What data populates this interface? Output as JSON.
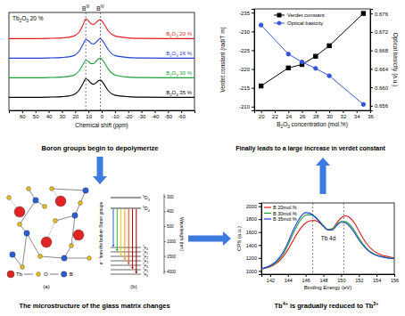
{
  "chart_data": [
    {
      "type": "line",
      "title": "Tb2O3 20 %",
      "xlabel": "Chemical shift (ppm)",
      "x": [
        70,
        50,
        40,
        30,
        25,
        20,
        17,
        14,
        12,
        10,
        8,
        6,
        4,
        2,
        1,
        0,
        -2,
        -5,
        -10,
        -20,
        -30,
        -50,
        -70
      ],
      "series": [
        {
          "name": "B2O3 20 %",
          "color": "#e41a1c",
          "values": [
            3.3,
            3.3,
            3.31,
            3.33,
            3.36,
            3.45,
            3.6,
            3.95,
            4.2,
            4.12,
            3.98,
            3.95,
            4.05,
            4.15,
            4.17,
            4.12,
            3.95,
            3.65,
            3.42,
            3.33,
            3.31,
            3.3,
            3.3
          ]
        },
        {
          "name": "B2O3 26 %",
          "color": "#1f3fd6",
          "values": [
            2.4,
            2.4,
            2.41,
            2.43,
            2.46,
            2.55,
            2.72,
            3.05,
            3.25,
            3.2,
            3.08,
            3.05,
            3.15,
            3.27,
            3.3,
            3.25,
            3.08,
            2.78,
            2.52,
            2.43,
            2.41,
            2.4,
            2.4
          ]
        },
        {
          "name": "B2O3 30 %",
          "color": "#1a9e3a",
          "values": [
            1.5,
            1.5,
            1.51,
            1.53,
            1.56,
            1.65,
            1.82,
            2.12,
            2.3,
            2.25,
            2.15,
            2.15,
            2.28,
            2.38,
            2.4,
            2.36,
            2.2,
            1.9,
            1.63,
            1.53,
            1.51,
            1.5,
            1.5
          ]
        },
        {
          "name": "B2O3 35 %",
          "color": "#000000",
          "values": [
            0.6,
            0.6,
            0.61,
            0.63,
            0.66,
            0.76,
            0.93,
            1.25,
            1.45,
            1.38,
            1.25,
            1.2,
            1.28,
            1.38,
            1.4,
            1.35,
            1.18,
            0.9,
            0.7,
            0.63,
            0.61,
            0.6,
            0.6
          ]
        }
      ],
      "xlim": [
        70,
        -70
      ],
      "xticks": [
        60,
        50,
        40,
        30,
        20,
        10,
        0,
        -10,
        -20,
        -30,
        -40,
        -50,
        -60
      ],
      "ylim": [
        0,
        4.5
      ],
      "tick_labels": "x",
      "vlines": [
        {
          "value": 12,
          "label": "BIII"
        },
        {
          "value": 1,
          "label": "BIV"
        }
      ]
    },
    {
      "type": "line",
      "xlabel": "B2O3 concentration (mol.%)",
      "ylabel": "Verdet constant (rad/T m)",
      "y2label": "Optical basicity (a.u.)",
      "x": [
        20,
        24,
        26,
        28,
        30,
        35
      ],
      "series": [
        {
          "name": "Verdet constant",
          "color": "#000000",
          "marker": "square",
          "values": [
            -215.5,
            -220.3,
            -221.2,
            -223.4,
            -226.2,
            -234.8
          ]
        },
        {
          "name": "Optical basicity",
          "color": "#3355dd",
          "marker": "circle",
          "axis": "y2",
          "values": [
            0.6735,
            0.6672,
            0.6655,
            0.6641,
            0.6625,
            0.6563
          ]
        }
      ],
      "xlim": [
        19,
        36
      ],
      "xticks": [
        20,
        22,
        24,
        26,
        28,
        30,
        32,
        34,
        36
      ],
      "ylim": [
        -209,
        -236
      ],
      "yticks": [
        -210,
        -215,
        -220,
        -225,
        -230,
        -235
      ],
      "y2lim": [
        0.655,
        0.677
      ],
      "y2ticks": [
        0.656,
        {
          "value": 0.66,
          "label": "0.660"
        },
        0.664,
        0.668,
        0.672,
        0.676
      ],
      "legend": "top"
    },
    {
      "type": "line",
      "annotation": "Tb 4d",
      "xlabel": "Binding Energy (eV)",
      "ylabel": "CPS (a.u.)",
      "x": [
        141,
        141.5,
        142,
        142.5,
        143,
        143.5,
        144,
        144.5,
        145,
        145.5,
        146,
        146.5,
        147,
        147.5,
        148,
        148.5,
        149,
        149.5,
        150,
        150.5,
        151,
        151.5,
        152,
        152.5,
        153,
        153.5,
        154,
        154.5,
        155,
        155.5,
        156
      ],
      "series": [
        {
          "name": "B 20mol.%",
          "color": "#e41a1c",
          "values": [
            1030,
            1045,
            1065,
            1100,
            1150,
            1230,
            1330,
            1450,
            1570,
            1670,
            1740,
            1775,
            1780,
            1750,
            1690,
            1640,
            1650,
            1740,
            1820,
            1850,
            1820,
            1740,
            1620,
            1500,
            1400,
            1330,
            1280,
            1250,
            1230,
            1215,
            1200
          ]
        },
        {
          "name": "B 30mol.%",
          "color": "#1a9e3a",
          "values": [
            1030,
            1050,
            1075,
            1115,
            1175,
            1270,
            1400,
            1550,
            1690,
            1800,
            1860,
            1870,
            1840,
            1780,
            1700,
            1640,
            1650,
            1720,
            1765,
            1760,
            1710,
            1620,
            1510,
            1410,
            1330,
            1280,
            1245,
            1225,
            1210,
            1200,
            1195
          ]
        },
        {
          "name": "B 35mol.%",
          "color": "#1f3fd6",
          "values": [
            1035,
            1055,
            1085,
            1130,
            1200,
            1300,
            1440,
            1600,
            1740,
            1850,
            1900,
            1890,
            1840,
            1770,
            1690,
            1630,
            1630,
            1700,
            1750,
            1740,
            1680,
            1590,
            1480,
            1390,
            1320,
            1270,
            1240,
            1220,
            1205,
            1195,
            1190
          ]
        }
      ],
      "xlim": [
        141,
        156
      ],
      "xticks": [
        142,
        144,
        146,
        148,
        150,
        152,
        154,
        156
      ],
      "ylim": [
        950,
        2050
      ],
      "yticks": [
        1000,
        1200,
        1400,
        1600,
        1800,
        2000
      ],
      "vlines": [
        146.8,
        150.3
      ],
      "legend": "upper left"
    }
  ],
  "captions": {
    "top_left": "Boron groups begin to depolymerize",
    "top_right": "Finally leads to a large increase in verdet constant",
    "bottom_left": "The microstructure of the glass matrix changes",
    "bottom_right": "Tb4+ is gradually reduced to Tb3+"
  },
  "diagram": {
    "panel_a": {
      "label": "(a)",
      "legend": [
        "Tb",
        "O",
        "B"
      ]
    },
    "panel_b": {
      "label": "(b)",
      "note": "e⁻ from the broken Boron groups",
      "upper_levels": [
        "5D3",
        "5D4"
      ],
      "lower_levels": [
        "7F0",
        "7F1",
        "7F2",
        "7F3",
        "7F4",
        "7F5",
        "7F6"
      ],
      "axis_title": "Wavelength (nm)",
      "axis_ticks": [
        "300",
        "400",
        "500",
        "1000",
        "1500",
        "4000"
      ]
    }
  }
}
